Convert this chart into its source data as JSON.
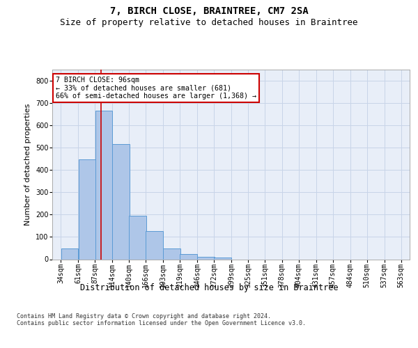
{
  "title": "7, BIRCH CLOSE, BRAINTREE, CM7 2SA",
  "subtitle": "Size of property relative to detached houses in Braintree",
  "xlabel": "Distribution of detached houses by size in Braintree",
  "ylabel": "Number of detached properties",
  "bin_edges": [
    34,
    61,
    87,
    114,
    140,
    166,
    193,
    219,
    246,
    272,
    299,
    325,
    351,
    378,
    404,
    431,
    457,
    484,
    510,
    537,
    563
  ],
  "bar_heights": [
    47,
    447,
    665,
    515,
    195,
    125,
    47,
    22,
    10,
    8,
    0,
    0,
    0,
    0,
    0,
    0,
    0,
    0,
    0,
    0
  ],
  "tick_labels": [
    "34sqm",
    "61sqm",
    "87sqm",
    "114sqm",
    "140sqm",
    "166sqm",
    "193sqm",
    "219sqm",
    "246sqm",
    "272sqm",
    "299sqm",
    "325sqm",
    "351sqm",
    "378sqm",
    "404sqm",
    "431sqm",
    "457sqm",
    "484sqm",
    "510sqm",
    "537sqm",
    "563sqm"
  ],
  "bar_color": "#aec6e8",
  "bar_edge_color": "#5b9bd5",
  "grid_color": "#c8d4e8",
  "background_color": "#e8eef8",
  "vline_x": 96,
  "vline_color": "#cc0000",
  "annotation_line1": "7 BIRCH CLOSE: 96sqm",
  "annotation_line2": "← 33% of detached houses are smaller (681)",
  "annotation_line3": "66% of semi-detached houses are larger (1,368) →",
  "ylim": [
    0,
    850
  ],
  "yticks": [
    0,
    100,
    200,
    300,
    400,
    500,
    600,
    700,
    800
  ],
  "footer_text": "Contains HM Land Registry data © Crown copyright and database right 2024.\nContains public sector information licensed under the Open Government Licence v3.0.",
  "title_fontsize": 10,
  "subtitle_fontsize": 9,
  "ylabel_fontsize": 8,
  "xlabel_fontsize": 8.5,
  "tick_fontsize": 7,
  "footer_fontsize": 6
}
